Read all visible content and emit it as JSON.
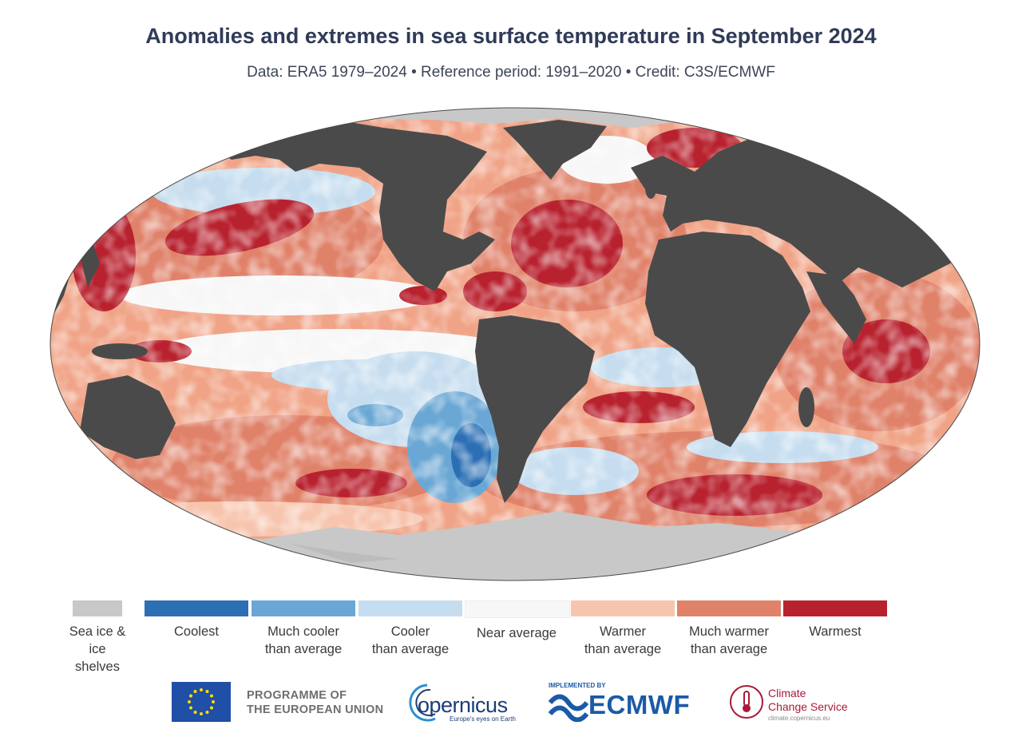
{
  "header": {
    "title": "Anomalies and extremes in sea surface temperature in September 2024",
    "subtitle": "Data: ERA5 1979–2024 • Reference period: 1991–2020 • Credit: C3S/ECMWF"
  },
  "colors": {
    "land": "#4a4a4a",
    "sea_ice": "#c8c8c8",
    "coolest": "#2c6fb5",
    "much_cooler": "#6aa7d4",
    "cooler": "#c6ddef",
    "near_average": "#f7f7f7",
    "warmer": "#f7c5ae",
    "much_warmer": "#e0826a",
    "warmest": "#b8222f"
  },
  "legend": {
    "items": [
      {
        "label": "Sea ice &\nice shelves",
        "color": "#c8c8c8"
      },
      {
        "label": "Coolest",
        "color": "#2c6fb5"
      },
      {
        "label": "Much cooler\nthan average",
        "color": "#6aa7d4"
      },
      {
        "label": "Cooler\nthan average",
        "color": "#c6ddef"
      },
      {
        "label": "Near average",
        "color": "#f7f7f7"
      },
      {
        "label": "Warmer\nthan average",
        "color": "#f7c5ae"
      },
      {
        "label": "Much warmer\nthan average",
        "color": "#e0826a"
      },
      {
        "label": "Warmest",
        "color": "#b8222f"
      }
    ]
  },
  "logos": {
    "eu_text": "PROGRAMME OF\nTHE EUROPEAN UNION",
    "copernicus_name": "opernicus",
    "copernicus_tagline": "Europe's eyes on Earth",
    "ecmwf_implemented": "IMPLEMENTED BY",
    "ecmwf_name": "ECMWF",
    "c3s_name": "Climate\nChange Service",
    "c3s_url": "climate.copernicus.eu"
  }
}
